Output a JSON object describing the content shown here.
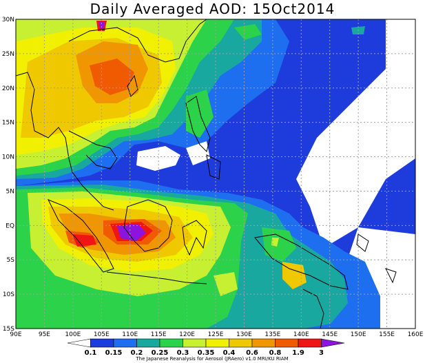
{
  "title": "Daily Averaged AOD: 15Oct2014",
  "credit": "The Japanese Reanalysis for Aerosol (JRAero) v1.0 MRI/KU RIAM",
  "map": {
    "lon_range": [
      90,
      160
    ],
    "lat_range": [
      -15,
      30
    ],
    "lon_labels": [
      "90E",
      "95E",
      "100E",
      "105E",
      "110E",
      "115E",
      "120E",
      "125E",
      "130E",
      "135E",
      "140E",
      "145E",
      "150E",
      "155E",
      "160E"
    ],
    "lat_labels": [
      "30N",
      "25N",
      "20N",
      "15N",
      "10N",
      "5N",
      "EQ",
      "5S",
      "10S",
      "15S"
    ]
  },
  "colorbar": {
    "colors": [
      "#ffffff",
      "#1a3cdc",
      "#1e6ef0",
      "#18a8a0",
      "#2cd24a",
      "#c8f032",
      "#f0f000",
      "#f0c800",
      "#f09600",
      "#f05a00",
      "#f01414",
      "#8c14dc"
    ],
    "labels": [
      "0.1",
      "0.15",
      "0.2",
      "0.25",
      "0.3",
      "0.35",
      "0.4",
      "0.6",
      "0.8",
      "1.9",
      "3"
    ]
  },
  "colors": {
    "frame": "#000000",
    "grid": "#a0a0a0",
    "ocean_clear": "#ffffff",
    "coast": "#000000"
  }
}
